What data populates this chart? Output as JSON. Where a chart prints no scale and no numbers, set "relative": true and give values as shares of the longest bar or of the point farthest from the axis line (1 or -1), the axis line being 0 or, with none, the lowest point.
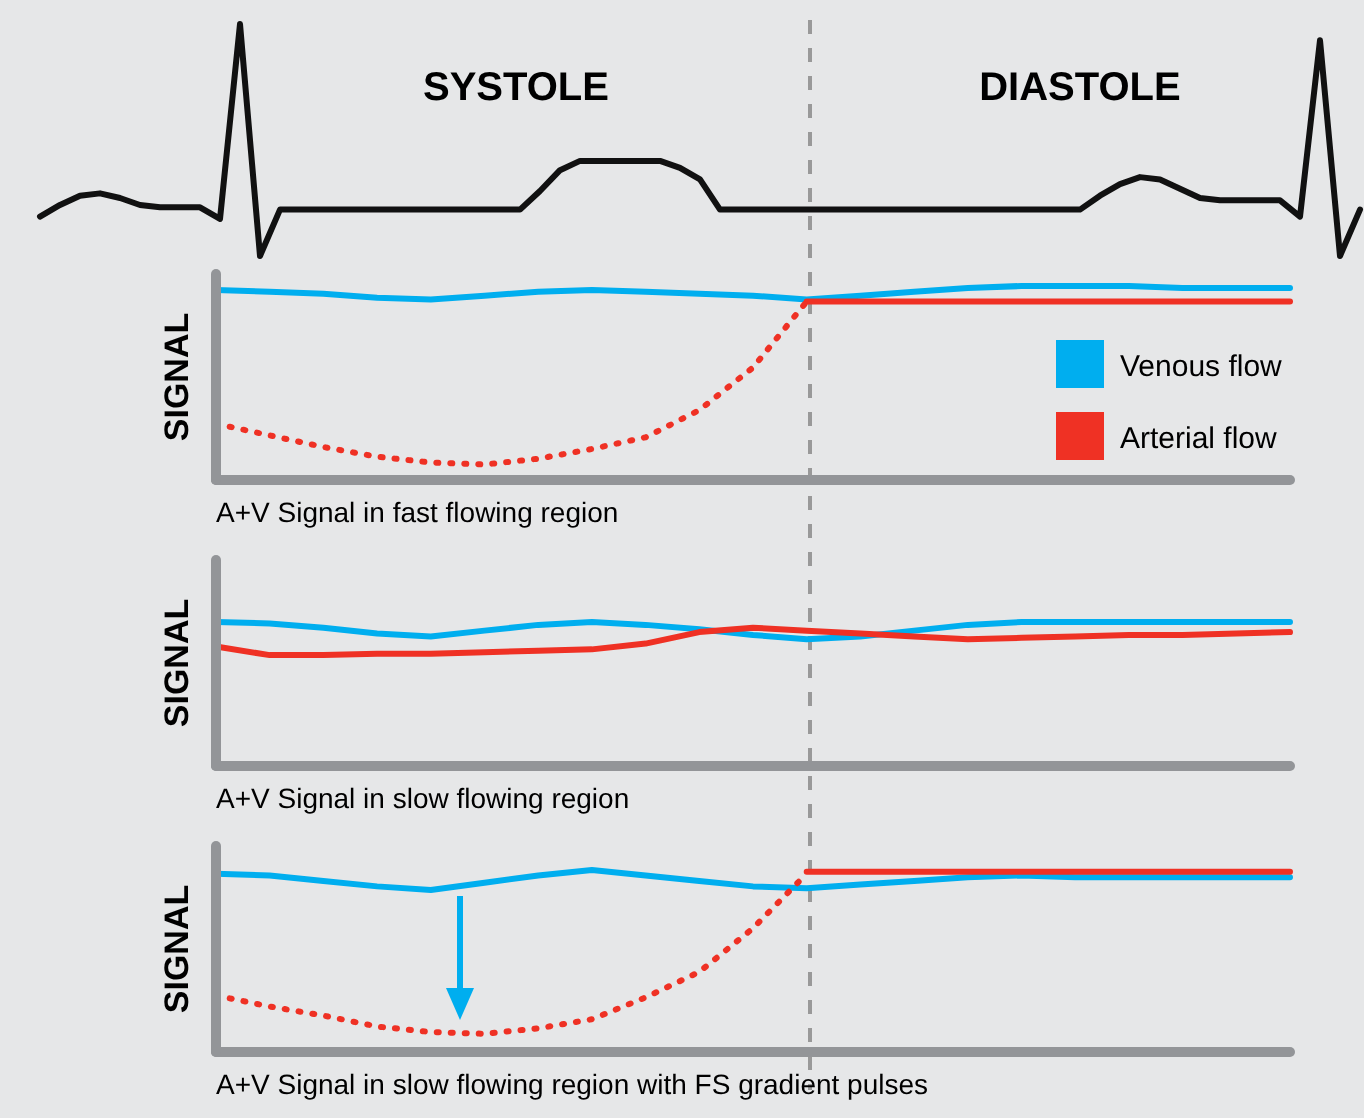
{
  "chart_data": [
    {
      "type": "line",
      "relative": true,
      "annotations": [
        "SYSTOLE",
        "DIASTOLE"
      ],
      "categories": [
        null,
        null,
        null,
        null,
        null,
        null,
        null,
        null,
        null,
        null,
        null,
        null,
        null,
        null,
        null,
        null,
        null,
        null,
        null,
        null,
        null,
        null,
        null,
        null,
        null,
        null,
        null,
        null,
        null,
        null,
        null,
        null,
        null,
        null,
        null,
        null,
        null,
        null,
        null,
        null,
        null,
        null,
        null,
        null,
        null,
        null,
        null,
        null,
        null,
        null,
        null,
        null,
        null,
        null,
        null,
        null,
        null,
        null,
        null,
        null,
        null,
        null,
        null,
        null,
        null,
        null,
        null
      ],
      "series": [
        {
          "color": "#111111",
          "values": [
            0.17,
            0.22,
            0.26,
            0.27,
            0.25,
            0.22,
            0.21,
            0.21,
            0.21,
            0.16,
            1,
            0,
            0.2,
            0.2,
            0.2,
            0.2,
            0.2,
            0.2,
            0.2,
            0.2,
            0.2,
            0.2,
            0.2,
            0.2,
            0.2,
            0.28,
            0.37,
            0.41,
            0.41,
            0.41,
            0.41,
            0.41,
            0.38,
            0.33,
            0.2,
            0.2,
            0.2,
            0.2,
            0.2,
            0.2,
            0.2,
            0.2,
            0.2,
            0.2,
            0.2,
            0.2,
            0.2,
            0.2,
            0.2,
            0.2,
            0.2,
            0.2,
            0.2,
            0.26,
            0.31,
            0.34,
            0.33,
            0.29,
            0.25,
            0.24,
            0.24,
            0.24,
            0.24,
            0.17,
            0.93,
            0,
            0.2
          ]
        }
      ]
    },
    {
      "type": "line",
      "relative": true,
      "categories": [
        null,
        null,
        null,
        null,
        null,
        null,
        null,
        null,
        null,
        null,
        null,
        null,
        null,
        null,
        null,
        null,
        null,
        null,
        null,
        null,
        null
      ],
      "ylabel": "SIGNAL",
      "xlabel": "A+V Signal in fast flowing region",
      "legend": "right",
      "series": [
        {
          "name": "Venous flow",
          "color": "#00aeef",
          "values": [
            0.98,
            0.97,
            0.96,
            0.94,
            0.93,
            0.95,
            0.97,
            0.98,
            0.97,
            0.96,
            0.95,
            0.93,
            0.95,
            0.97,
            0.99,
            1,
            1,
            1,
            0.99,
            0.99,
            0.99
          ]
        },
        {
          "name": "Arterial flow",
          "color": "#ef3124",
          "values": [
            null,
            null,
            null,
            null,
            null,
            null,
            null,
            null,
            null,
            null,
            null,
            0.92,
            0.92,
            0.92,
            0.92,
            0.92,
            0.92,
            0.92,
            0.92,
            0.92,
            0.92
          ]
        },
        {
          "color": "#ef3124",
          "line_style": "dotted",
          "values": [
            0.29,
            0.23,
            0.17,
            0.12,
            0.09,
            0.08,
            0.11,
            0.16,
            0.22,
            0.36,
            0.58,
            0.92,
            null,
            null,
            null,
            null,
            null,
            null,
            null,
            null,
            null
          ]
        }
      ]
    },
    {
      "type": "line",
      "relative": true,
      "categories": [
        null,
        null,
        null,
        null,
        null,
        null,
        null,
        null,
        null,
        null,
        null,
        null,
        null,
        null,
        null,
        null,
        null,
        null,
        null,
        null,
        null
      ],
      "ylabel": "SIGNAL",
      "xlabel": "A+V Signal in slow flowing region",
      "series": [
        {
          "color": "#00aeef",
          "values": [
            1,
            0.99,
            0.96,
            0.92,
            0.9,
            0.94,
            0.98,
            1,
            0.98,
            0.95,
            0.91,
            0.88,
            0.9,
            0.94,
            0.98,
            1,
            1,
            1,
            1,
            1,
            1
          ]
        },
        {
          "color": "#ef3124",
          "values": [
            0.83,
            0.77,
            0.77,
            0.78,
            0.78,
            0.79,
            0.8,
            0.81,
            0.85,
            0.93,
            0.96,
            0.94,
            0.92,
            0.9,
            0.88,
            0.89,
            0.9,
            0.91,
            0.91,
            0.92,
            0.93
          ]
        }
      ]
    },
    {
      "type": "line",
      "relative": true,
      "categories": [
        null,
        null,
        null,
        null,
        null,
        null,
        null,
        null,
        null,
        null,
        null,
        null,
        null,
        null,
        null,
        null,
        null,
        null,
        null,
        null,
        null
      ],
      "ylabel": "SIGNAL",
      "xlabel": "A+V Signal in slow flowing region with FS gradient pulses",
      "series": [
        {
          "color": "#00aeef",
          "values": [
            0.98,
            0.97,
            0.94,
            0.91,
            0.89,
            0.93,
            0.97,
            1,
            0.97,
            0.94,
            0.91,
            0.9,
            0.92,
            0.94,
            0.96,
            0.97,
            0.96,
            0.96,
            0.96,
            0.96,
            0.96
          ]
        },
        {
          "color": "#ef3124",
          "values": [
            null,
            null,
            null,
            null,
            null,
            null,
            null,
            null,
            null,
            null,
            null,
            0.99,
            0.99,
            0.99,
            0.99,
            0.99,
            0.99,
            0.99,
            0.99,
            0.99,
            0.99
          ]
        },
        {
          "color": "#ef3124",
          "line_style": "dotted",
          "values": [
            0.31,
            0.25,
            0.2,
            0.14,
            0.11,
            0.1,
            0.13,
            0.18,
            0.3,
            0.44,
            0.68,
            0.98,
            null,
            null,
            null,
            null,
            null,
            null,
            null,
            null,
            null
          ]
        }
      ]
    }
  ]
}
